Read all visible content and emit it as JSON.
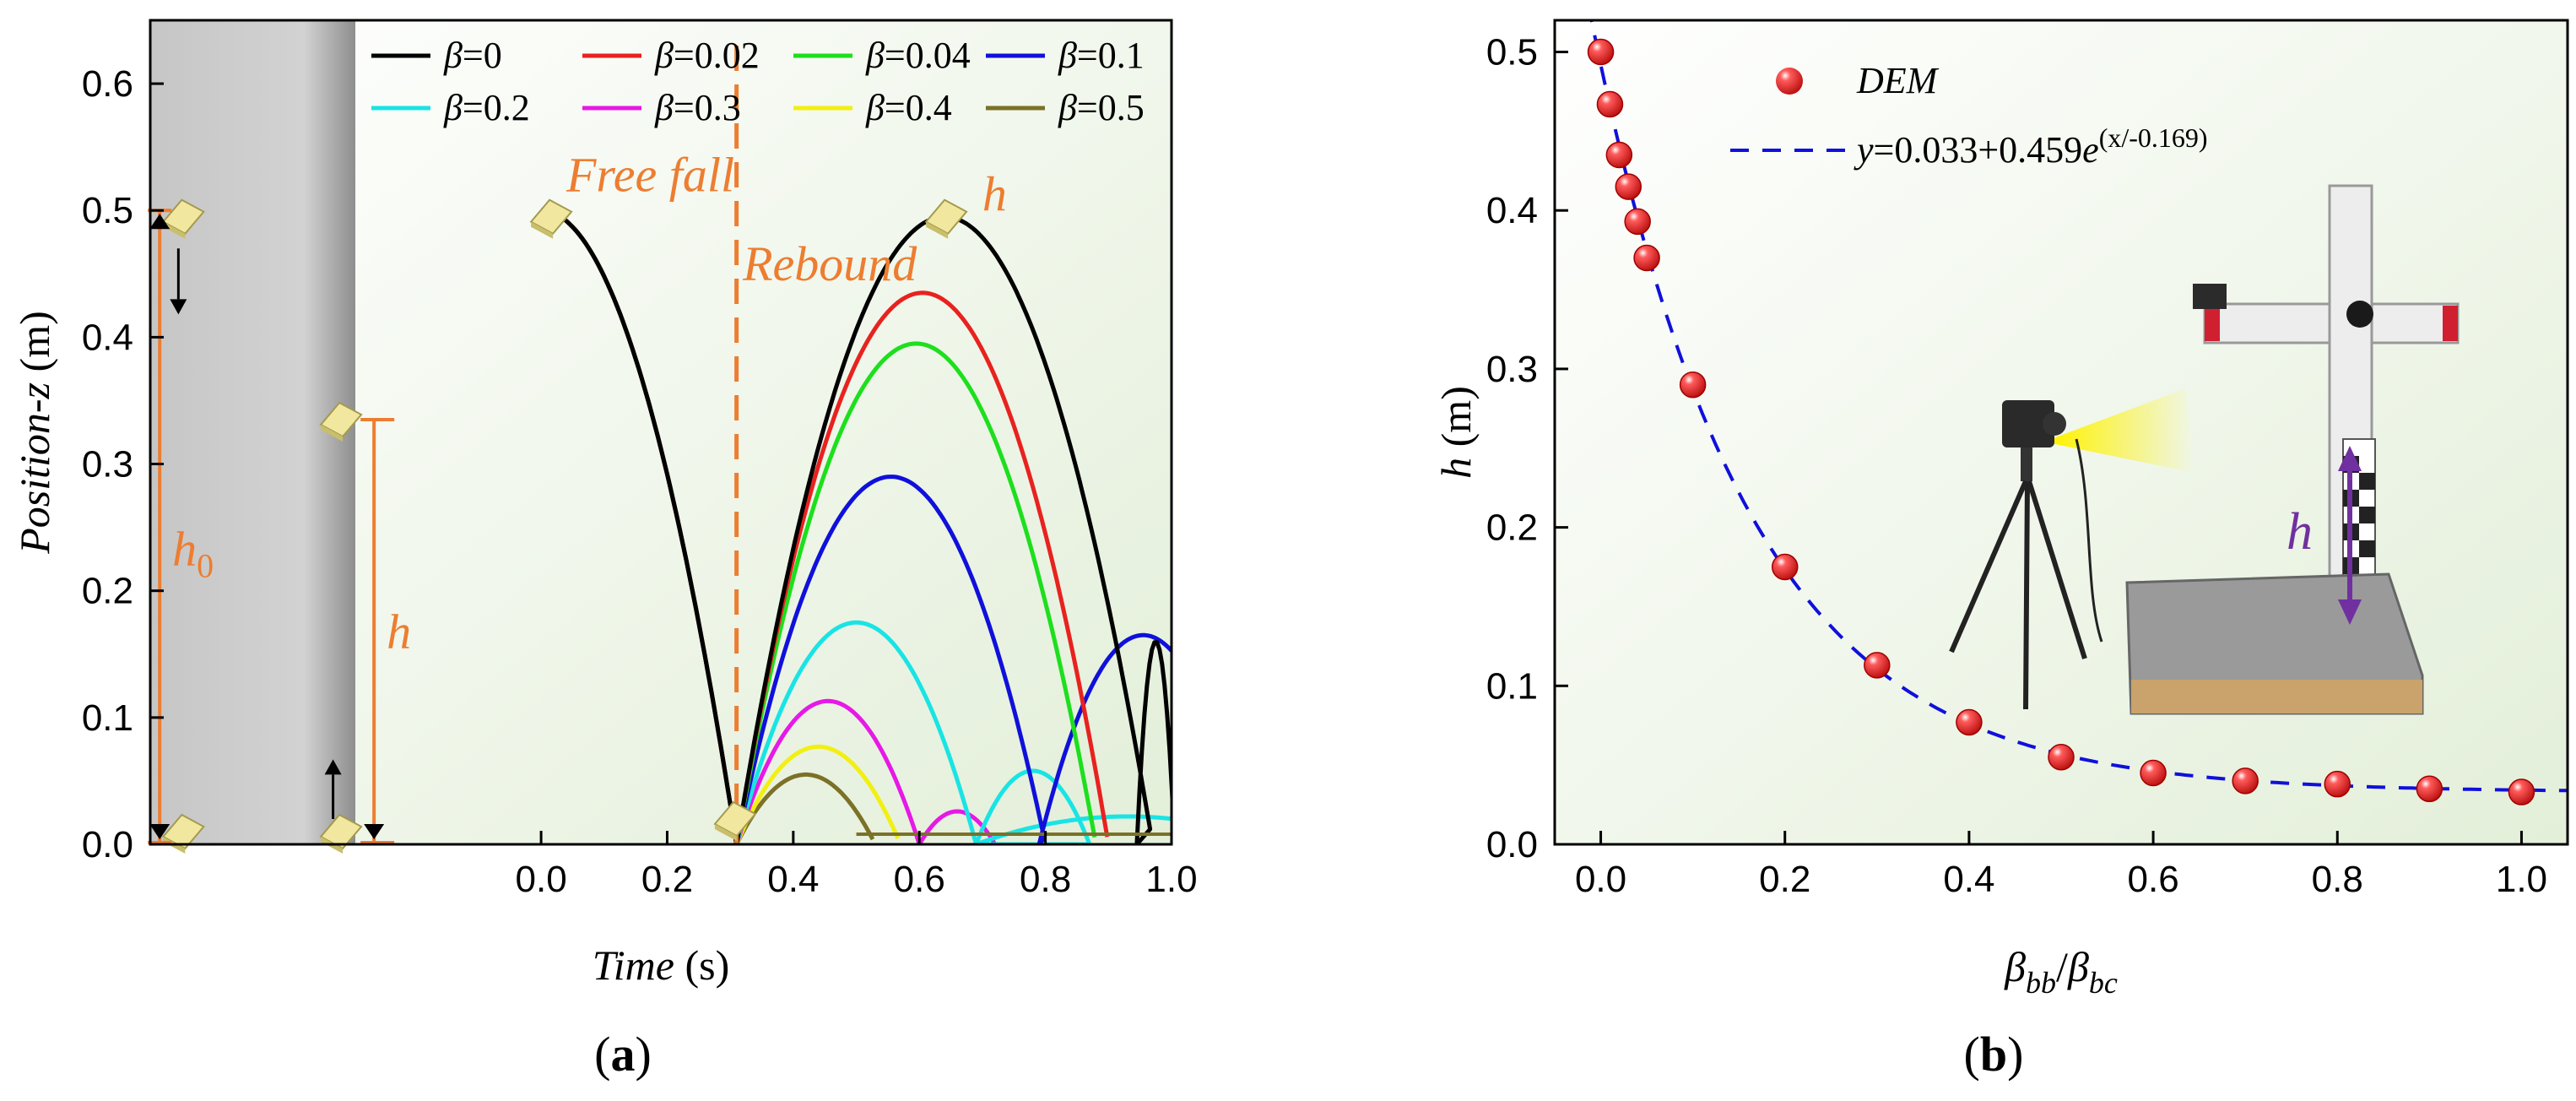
{
  "chart_data": [
    {
      "type": "line",
      "panel": "a",
      "panel_label_open": "(",
      "panel_label_letter": "a",
      "panel_label_close": ")",
      "xlabel_main": "Time",
      "xlabel_unit": " (s)",
      "ylabel_main": "Position-z",
      "ylabel_unit": " (m)",
      "xlim": [
        -0.62,
        1.0
      ],
      "ylim": [
        0,
        0.65
      ],
      "xticks": [
        "0.0",
        "0.2",
        "0.4",
        "0.6",
        "0.8",
        "1.0"
      ],
      "yticks": [
        "0.0",
        "0.1",
        "0.2",
        "0.3",
        "0.4",
        "0.5",
        "0.6"
      ],
      "legend_symbol": "β",
      "series": [
        {
          "label": "=0",
          "color": "#000000",
          "peaks": [
            [
              0.64,
              0.495
            ],
            [
              0.975,
              0.16
            ]
          ],
          "bounces": [
            0.31,
            0.945
          ]
        },
        {
          "label": "=0.02",
          "color": "#E8221F",
          "peaks": [
            [
              0.605,
              0.435
            ]
          ],
          "bounces": [
            0.31,
            0.895
          ]
        },
        {
          "label": "=0.04",
          "color": "#1DDF1D",
          "peaks": [
            [
              0.595,
              0.395
            ]
          ],
          "bounces": [
            0.31,
            0.88
          ]
        },
        {
          "label": "=0.1",
          "color": "#1010DB",
          "peaks": [
            [
              0.555,
              0.29
            ],
            [
              0.955,
              0.165
            ]
          ],
          "bounces": [
            0.31,
            0.79
          ]
        },
        {
          "label": "=0.2",
          "color": "#19E4E4",
          "peaks": [
            [
              0.5,
              0.175
            ],
            [
              0.78,
              0.058
            ],
            [
              0.93,
              0.022
            ]
          ],
          "bounces": [
            0.31,
            0.69
          ]
        },
        {
          "label": "=0.3",
          "color": "#E619E6",
          "peaks": [
            [
              0.455,
              0.113
            ],
            [
              0.66,
              0.026
            ]
          ],
          "bounces": [
            0.31,
            0.6
          ]
        },
        {
          "label": "=0.4",
          "color": "#F2EF12",
          "peaks": [
            [
              0.44,
              0.077
            ]
          ],
          "bounces": [
            0.31,
            0.545
          ]
        },
        {
          "label": "=0.5",
          "color": "#7B7127",
          "peaks": [
            [
              0.42,
              0.055
            ]
          ],
          "bounces": [
            0.31,
            0.515
          ]
        }
      ],
      "common_fall": {
        "start": [
          0.0,
          0.5
        ],
        "impact": [
          0.31,
          0.0
        ]
      },
      "annotations": {
        "free_fall": "Free fall",
        "rebound": "Rebound",
        "h_top": "h",
        "h_mid": "h",
        "h0_main": "h",
        "h0_sub": "0"
      },
      "divider_x": 0.31,
      "h0_level": 0.5,
      "h_level": 0.335
    },
    {
      "type": "scatter",
      "panel": "b",
      "panel_label_open": "(",
      "panel_label_letter": "b",
      "panel_label_close": ")",
      "xlabel_beta": "β",
      "xlabel_sub1": "bb",
      "xlabel_slash": "/",
      "xlabel_sub2": "bc",
      "ylabel_main": "h",
      "ylabel_unit": " (m)",
      "xlim": [
        -0.05,
        1.05
      ],
      "ylim": [
        0,
        0.52
      ],
      "xticks": [
        "0.0",
        "0.2",
        "0.4",
        "0.6",
        "0.8",
        "1.0"
      ],
      "yticks": [
        "0.0",
        "0.1",
        "0.2",
        "0.3",
        "0.4",
        "0.5"
      ],
      "x": [
        0.0,
        0.01,
        0.02,
        0.03,
        0.04,
        0.05,
        0.1,
        0.2,
        0.3,
        0.4,
        0.5,
        0.6,
        0.7,
        0.8,
        0.9,
        1.0
      ],
      "y": [
        0.5,
        0.467,
        0.435,
        0.415,
        0.393,
        0.37,
        0.29,
        0.175,
        0.113,
        0.077,
        0.055,
        0.045,
        0.04,
        0.038,
        0.035,
        0.033
      ],
      "marker_color": "#E8221F",
      "fit": {
        "a": 0.033,
        "b": 0.459,
        "c": -0.169,
        "color": "#1010DB"
      },
      "legend_scatter": "DEM",
      "legend_fit_y": "y",
      "legend_fit_mid": "=0.033+0.459",
      "legend_fit_e": "e",
      "legend_fit_sup": "(x/-0.169)",
      "inset_label": "h",
      "inset_arrow_color": "#7030A0"
    }
  ]
}
